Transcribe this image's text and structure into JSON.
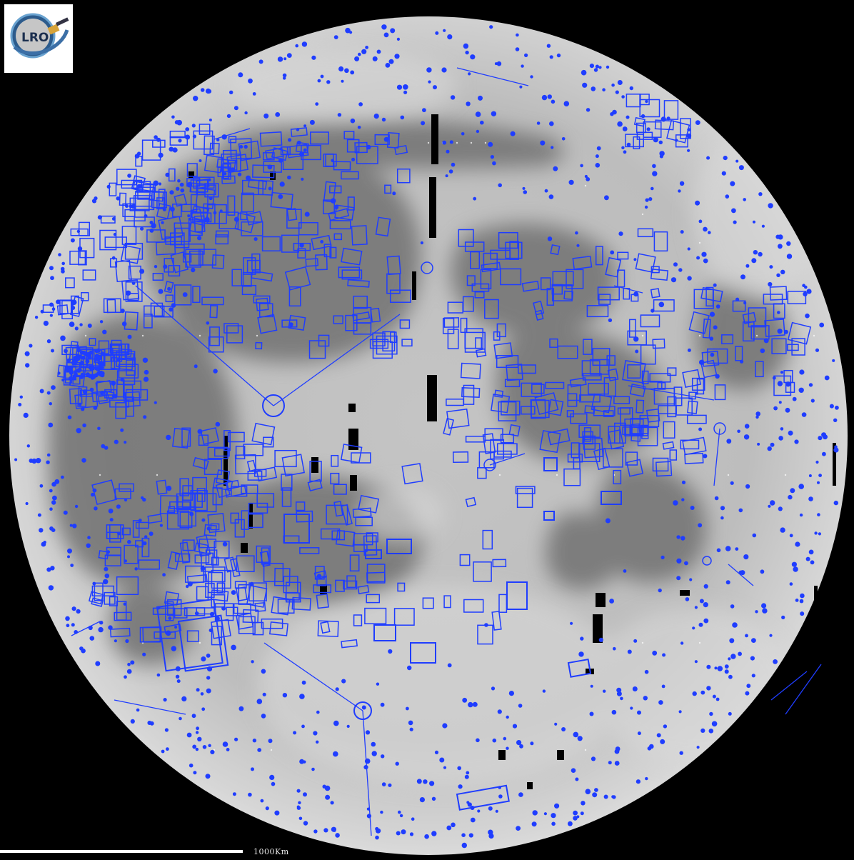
{
  "map": {
    "background": "#000000",
    "surface_light": "#c8c8c8",
    "surface_mare": "#6f6f6f",
    "footprint_color": "#1f3dff"
  },
  "logo": {
    "text": "LRO",
    "icon": "lro-mission-logo"
  },
  "scale_bar": {
    "label": "1000Km"
  }
}
